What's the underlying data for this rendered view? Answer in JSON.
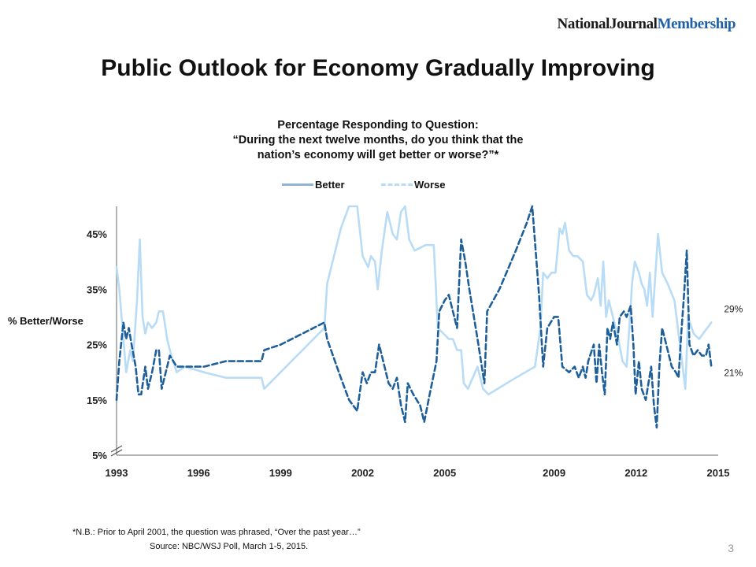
{
  "brand": {
    "part1": "NationalJournal",
    "part2": "Membership"
  },
  "title": "Public Outlook for Economy Gradually Improving",
  "subtitle_lines": [
    "Percentage Responding to Question:",
    "“During the next twelve months, do you think that the",
    "nation’s economy will get better or worse?”*"
  ],
  "ylabel": "% Better/Worse",
  "footnote": "*N.B.: Prior to April 2001, the question was phrased, “Over the past year…”",
  "source": "Source: NBC/WSJ Poll, March 1-5, 2015.",
  "page_number": "3",
  "colors": {
    "better": "#b9dcf6",
    "worse": "#1f5f99",
    "axis": "#9a9a9a"
  },
  "chart_data": {
    "type": "line",
    "xlim": [
      1993,
      2015
    ],
    "ylim": [
      5,
      50
    ],
    "axis_break": true,
    "grid": false,
    "legend_position": "top-center",
    "x_ticks": [
      1993,
      1996,
      1999,
      2002,
      2005,
      2009,
      2012,
      2015
    ],
    "x_tick_labels": [
      "1993",
      "1996",
      "1999",
      "2002",
      "2005",
      "2009",
      "2012",
      "2015"
    ],
    "y_ticks": [
      5,
      15,
      25,
      35,
      45
    ],
    "y_tick_labels": [
      "5%",
      "15%",
      "25%",
      "35%",
      "45%"
    ],
    "annotations": [
      {
        "label": "29%",
        "x": 2014.75,
        "y": 29
      },
      {
        "label": "21%",
        "x": 2014.75,
        "y": 21
      }
    ],
    "series": [
      {
        "name": "Better",
        "style": "solid",
        "points": [
          [
            1993.0,
            39
          ],
          [
            1993.1,
            35
          ],
          [
            1993.25,
            26
          ],
          [
            1993.35,
            20
          ],
          [
            1993.5,
            24
          ],
          [
            1993.6,
            22
          ],
          [
            1993.75,
            33
          ],
          [
            1993.85,
            44
          ],
          [
            1993.95,
            30
          ],
          [
            1994.05,
            27
          ],
          [
            1994.15,
            29
          ],
          [
            1994.3,
            28
          ],
          [
            1994.45,
            29
          ],
          [
            1994.55,
            31
          ],
          [
            1994.7,
            31
          ],
          [
            1994.85,
            26
          ],
          [
            1995.0,
            23
          ],
          [
            1995.2,
            20
          ],
          [
            1995.5,
            21
          ],
          [
            1996.2,
            20
          ],
          [
            1997.0,
            19
          ],
          [
            1997.8,
            19
          ],
          [
            1998.3,
            19
          ],
          [
            1998.4,
            17
          ],
          [
            2000.6,
            28
          ],
          [
            2000.7,
            36
          ],
          [
            2001.2,
            46
          ],
          [
            2001.5,
            50
          ],
          [
            2001.8,
            50
          ],
          [
            2002.0,
            41
          ],
          [
            2002.2,
            39
          ],
          [
            2002.3,
            41
          ],
          [
            2002.45,
            40
          ],
          [
            2002.55,
            35
          ],
          [
            2002.7,
            42
          ],
          [
            2002.9,
            49
          ],
          [
            2003.1,
            45
          ],
          [
            2003.25,
            44
          ],
          [
            2003.4,
            49
          ],
          [
            2003.55,
            50
          ],
          [
            2003.7,
            44
          ],
          [
            2003.9,
            42
          ],
          [
            2004.3,
            43
          ],
          [
            2004.6,
            43
          ],
          [
            2004.75,
            28
          ],
          [
            2004.95,
            27
          ],
          [
            2005.15,
            26
          ],
          [
            2005.3,
            26
          ],
          [
            2005.45,
            24
          ],
          [
            2005.6,
            24
          ],
          [
            2005.7,
            18
          ],
          [
            2005.85,
            17
          ],
          [
            2006.2,
            21
          ],
          [
            2006.4,
            17
          ],
          [
            2006.6,
            16
          ],
          [
            2007.6,
            19
          ],
          [
            2008.3,
            21
          ],
          [
            2008.5,
            28
          ],
          [
            2008.6,
            38
          ],
          [
            2008.75,
            37
          ],
          [
            2008.9,
            38
          ],
          [
            2009.05,
            38
          ],
          [
            2009.2,
            46
          ],
          [
            2009.3,
            45
          ],
          [
            2009.4,
            47
          ],
          [
            2009.55,
            42
          ],
          [
            2009.7,
            41
          ],
          [
            2009.85,
            41
          ],
          [
            2010.05,
            40
          ],
          [
            2010.2,
            34
          ],
          [
            2010.35,
            33
          ],
          [
            2010.45,
            34
          ],
          [
            2010.6,
            37
          ],
          [
            2010.7,
            32
          ],
          [
            2010.8,
            40
          ],
          [
            2010.9,
            30
          ],
          [
            2011.0,
            33
          ],
          [
            2011.15,
            30
          ],
          [
            2011.35,
            26
          ],
          [
            2011.5,
            22
          ],
          [
            2011.65,
            21
          ],
          [
            2011.75,
            28
          ],
          [
            2011.85,
            36
          ],
          [
            2011.95,
            40
          ],
          [
            2012.1,
            38
          ],
          [
            2012.2,
            36
          ],
          [
            2012.3,
            35
          ],
          [
            2012.4,
            32
          ],
          [
            2012.5,
            38
          ],
          [
            2012.6,
            30
          ],
          [
            2012.8,
            45
          ],
          [
            2012.95,
            38
          ],
          [
            2013.15,
            36
          ],
          [
            2013.4,
            33
          ],
          [
            2013.6,
            25
          ],
          [
            2013.8,
            17
          ],
          [
            2013.9,
            30
          ],
          [
            2014.1,
            27
          ],
          [
            2014.3,
            26
          ],
          [
            2014.45,
            27
          ],
          [
            2014.6,
            28
          ],
          [
            2014.75,
            29
          ]
        ]
      },
      {
        "name": "Worse",
        "style": "dashed",
        "points": [
          [
            1993.0,
            15
          ],
          [
            1993.1,
            22
          ],
          [
            1993.25,
            29
          ],
          [
            1993.35,
            26
          ],
          [
            1993.45,
            28
          ],
          [
            1993.55,
            25
          ],
          [
            1993.7,
            21
          ],
          [
            1993.8,
            16
          ],
          [
            1993.9,
            16
          ],
          [
            1994.05,
            21
          ],
          [
            1994.15,
            17
          ],
          [
            1994.3,
            20
          ],
          [
            1994.45,
            24
          ],
          [
            1994.55,
            24
          ],
          [
            1994.65,
            17
          ],
          [
            1994.8,
            20
          ],
          [
            1994.95,
            23
          ],
          [
            1995.2,
            21
          ],
          [
            1996.2,
            21
          ],
          [
            1997.0,
            22
          ],
          [
            1998.0,
            22
          ],
          [
            1998.3,
            22
          ],
          [
            1998.4,
            24
          ],
          [
            1999.0,
            25
          ],
          [
            2000.6,
            29
          ],
          [
            2000.7,
            26
          ],
          [
            2001.2,
            19
          ],
          [
            2001.5,
            15
          ],
          [
            2001.8,
            13
          ],
          [
            2002.0,
            20
          ],
          [
            2002.15,
            18
          ],
          [
            2002.3,
            20
          ],
          [
            2002.45,
            20
          ],
          [
            2002.6,
            25
          ],
          [
            2002.75,
            22
          ],
          [
            2002.95,
            18
          ],
          [
            2003.1,
            17
          ],
          [
            2003.25,
            19
          ],
          [
            2003.4,
            14
          ],
          [
            2003.55,
            11
          ],
          [
            2003.65,
            18
          ],
          [
            2003.85,
            16
          ],
          [
            2004.1,
            14
          ],
          [
            2004.25,
            11
          ],
          [
            2004.45,
            16
          ],
          [
            2004.7,
            22
          ],
          [
            2004.8,
            31
          ],
          [
            2005.0,
            33
          ],
          [
            2005.15,
            34
          ],
          [
            2005.3,
            31
          ],
          [
            2005.45,
            28
          ],
          [
            2005.6,
            44
          ],
          [
            2005.75,
            40
          ],
          [
            2005.9,
            35
          ],
          [
            2006.2,
            26
          ],
          [
            2006.45,
            18
          ],
          [
            2006.55,
            31
          ],
          [
            2007.0,
            35
          ],
          [
            2007.6,
            42
          ],
          [
            2008.0,
            47
          ],
          [
            2008.2,
            50
          ],
          [
            2008.45,
            34
          ],
          [
            2008.6,
            21
          ],
          [
            2008.75,
            28
          ],
          [
            2009.0,
            30
          ],
          [
            2009.15,
            30
          ],
          [
            2009.3,
            21
          ],
          [
            2009.55,
            20
          ],
          [
            2009.75,
            21
          ],
          [
            2009.9,
            19
          ],
          [
            2010.05,
            21
          ],
          [
            2010.15,
            19
          ],
          [
            2010.25,
            22
          ],
          [
            2010.45,
            25
          ],
          [
            2010.55,
            18
          ],
          [
            2010.65,
            25
          ],
          [
            2010.75,
            20
          ],
          [
            2010.85,
            16
          ],
          [
            2010.95,
            28
          ],
          [
            2011.05,
            26
          ],
          [
            2011.15,
            29
          ],
          [
            2011.3,
            25
          ],
          [
            2011.4,
            30
          ],
          [
            2011.55,
            31
          ],
          [
            2011.65,
            30
          ],
          [
            2011.8,
            32
          ],
          [
            2011.9,
            25
          ],
          [
            2011.98,
            16
          ],
          [
            2012.1,
            22
          ],
          [
            2012.2,
            17
          ],
          [
            2012.35,
            15
          ],
          [
            2012.45,
            18
          ],
          [
            2012.55,
            21
          ],
          [
            2012.65,
            14
          ],
          [
            2012.75,
            10
          ],
          [
            2012.85,
            21
          ],
          [
            2012.95,
            28
          ],
          [
            2013.15,
            24
          ],
          [
            2013.3,
            21
          ],
          [
            2013.45,
            20
          ],
          [
            2013.55,
            19
          ],
          [
            2013.65,
            27
          ],
          [
            2013.75,
            34
          ],
          [
            2013.85,
            42
          ],
          [
            2013.95,
            25
          ],
          [
            2014.1,
            23
          ],
          [
            2014.25,
            24
          ],
          [
            2014.4,
            23
          ],
          [
            2014.55,
            23
          ],
          [
            2014.65,
            25
          ],
          [
            2014.75,
            21
          ]
        ]
      }
    ]
  }
}
